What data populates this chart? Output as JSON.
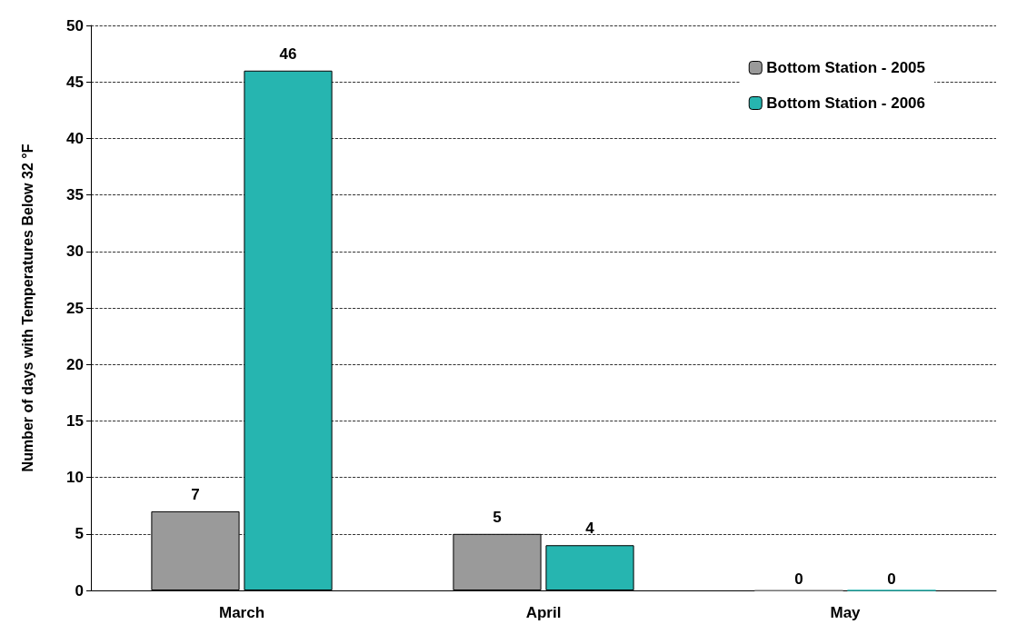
{
  "chart_data": {
    "type": "bar",
    "ylabel": "Number of days with Temperatures Below 32 °F",
    "categories": [
      "March",
      "April",
      "May"
    ],
    "series": [
      {
        "name": "Bottom Station - 2005",
        "color": "#9a9a9a",
        "values": [
          7,
          5,
          0
        ]
      },
      {
        "name": "Bottom Station - 2006",
        "color": "#26b5b0",
        "values": [
          46,
          4,
          0
        ]
      }
    ],
    "ylim": [
      0,
      50
    ],
    "yticks": [
      0,
      5,
      10,
      15,
      20,
      25,
      30,
      35,
      40,
      45,
      50
    ],
    "grid": "y",
    "legend": "top right",
    "data_labels": true
  }
}
